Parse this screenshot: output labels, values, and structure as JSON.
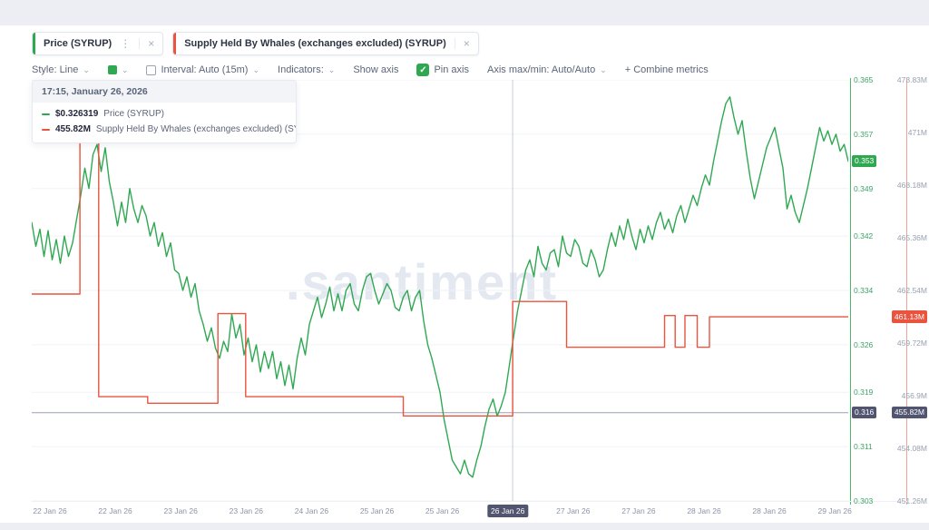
{
  "icons": {
    "kebab": "⋮",
    "close": "×",
    "chevron": "⌄",
    "check": "✓"
  },
  "tabs": [
    {
      "label": "Price (SYRUP)",
      "accent": "#30a852"
    },
    {
      "label": "Supply Held By Whales (exchanges excluded) (SYRUP)",
      "accent": "#e8543e"
    }
  ],
  "toolbar": {
    "style_label": "Style: Line",
    "interval_label": "Interval: Auto (15m)",
    "indicators_label": "Indicators:",
    "show_axis_label": "Show axis",
    "pin_axis_label": "Pin axis",
    "axis_maxmin_label": "Axis max/min: Auto/Auto",
    "combine_metrics_label": "+ Combine metrics"
  },
  "tooltip": {
    "datetime": "17:15, January 26, 2026",
    "rows": [
      {
        "value": "$0.326319",
        "label": "Price (SYRUP)",
        "color": "#30a852"
      },
      {
        "value": "455.82M",
        "label": "Supply Held By Whales (exchanges excluded) (SYRUP)",
        "color": "#e8543e"
      }
    ]
  },
  "watermark": ".santiment",
  "chart_data": {
    "type": "line",
    "title": "Price (SYRUP) vs Supply Held By Whales (exchanges excluded) (SYRUP)",
    "legend_position": "top-left tooltip",
    "grid": true,
    "crosshair": {
      "t": 0.589,
      "price": 0.316,
      "date_label": "26 Jan 26",
      "time_label": "17:15, January 26, 2026"
    },
    "price_axis": {
      "side": "right-inner",
      "color": "#30a852",
      "min": 0.303,
      "max": 0.365,
      "tick_labels": [
        "0.365",
        "0.357",
        "0.349",
        "0.342",
        "0.334",
        "0.326",
        "0.319",
        "0.311",
        "0.303"
      ],
      "tick_values": [
        0.365,
        0.357,
        0.349,
        0.342,
        0.334,
        0.326,
        0.319,
        0.311,
        0.303
      ],
      "current_badge_label": "0.353",
      "current_badge_value": 0.353,
      "crosshair_badge_label": "0.316",
      "crosshair_badge_value": 0.316
    },
    "supply_axis": {
      "side": "right-outer",
      "color": "#e8543e",
      "min": 451.26,
      "max": 473.83,
      "tick_labels": [
        "473.83M",
        "471M",
        "468.18M",
        "465.36M",
        "462.54M",
        "459.72M",
        "456.9M",
        "454.08M",
        "451.26M"
      ],
      "tick_values": [
        473.83,
        471.01,
        468.18,
        465.36,
        462.54,
        459.72,
        456.9,
        454.08,
        451.26
      ],
      "current_badge_label": "461.13M",
      "current_badge_value": 461.13,
      "crosshair_badge_label": "455.82M",
      "crosshair_badge_value": 455.82
    },
    "x_axis": {
      "labels": [
        "22 Jan 26",
        "22 Jan 26",
        "23 Jan 26",
        "23 Jan 26",
        "24 Jan 26",
        "25 Jan 26",
        "25 Jan 26",
        "26 Jan 26",
        "27 Jan 26",
        "27 Jan 26",
        "28 Jan 26",
        "28 Jan 26",
        "29 Jan 26"
      ],
      "highlight_index": 7
    },
    "series": [
      {
        "name": "Price (SYRUP)",
        "color": "#30a852",
        "axis": "price",
        "style": "line",
        "points": [
          [
            0,
            0.344
          ],
          [
            0.005,
            0.3405
          ],
          [
            0.01,
            0.343
          ],
          [
            0.015,
            0.339
          ],
          [
            0.02,
            0.3428
          ],
          [
            0.025,
            0.3385
          ],
          [
            0.03,
            0.3415
          ],
          [
            0.035,
            0.338
          ],
          [
            0.04,
            0.342
          ],
          [
            0.045,
            0.339
          ],
          [
            0.05,
            0.341
          ],
          [
            0.055,
            0.3445
          ],
          [
            0.06,
            0.348
          ],
          [
            0.065,
            0.352
          ],
          [
            0.07,
            0.349
          ],
          [
            0.075,
            0.354
          ],
          [
            0.08,
            0.3555
          ],
          [
            0.085,
            0.3515
          ],
          [
            0.09,
            0.355
          ],
          [
            0.095,
            0.35
          ],
          [
            0.1,
            0.347
          ],
          [
            0.105,
            0.3435
          ],
          [
            0.11,
            0.347
          ],
          [
            0.115,
            0.344
          ],
          [
            0.12,
            0.349
          ],
          [
            0.125,
            0.346
          ],
          [
            0.13,
            0.344
          ],
          [
            0.135,
            0.3465
          ],
          [
            0.14,
            0.345
          ],
          [
            0.145,
            0.342
          ],
          [
            0.15,
            0.344
          ],
          [
            0.155,
            0.3405
          ],
          [
            0.16,
            0.3425
          ],
          [
            0.165,
            0.339
          ],
          [
            0.17,
            0.341
          ],
          [
            0.175,
            0.337
          ],
          [
            0.18,
            0.3365
          ],
          [
            0.185,
            0.334
          ],
          [
            0.19,
            0.336
          ],
          [
            0.195,
            0.333
          ],
          [
            0.2,
            0.335
          ],
          [
            0.205,
            0.331
          ],
          [
            0.21,
            0.329
          ],
          [
            0.215,
            0.3265
          ],
          [
            0.22,
            0.3285
          ],
          [
            0.225,
            0.3255
          ],
          [
            0.23,
            0.324
          ],
          [
            0.235,
            0.3265
          ],
          [
            0.24,
            0.325
          ],
          [
            0.245,
            0.3305
          ],
          [
            0.25,
            0.327
          ],
          [
            0.255,
            0.329
          ],
          [
            0.26,
            0.3245
          ],
          [
            0.265,
            0.327
          ],
          [
            0.27,
            0.3235
          ],
          [
            0.275,
            0.326
          ],
          [
            0.28,
            0.322
          ],
          [
            0.285,
            0.325
          ],
          [
            0.29,
            0.3225
          ],
          [
            0.295,
            0.325
          ],
          [
            0.3,
            0.321
          ],
          [
            0.305,
            0.3235
          ],
          [
            0.31,
            0.32
          ],
          [
            0.315,
            0.323
          ],
          [
            0.32,
            0.3195
          ],
          [
            0.325,
            0.324
          ],
          [
            0.33,
            0.327
          ],
          [
            0.335,
            0.3245
          ],
          [
            0.34,
            0.329
          ],
          [
            0.345,
            0.331
          ],
          [
            0.35,
            0.333
          ],
          [
            0.355,
            0.33
          ],
          [
            0.36,
            0.332
          ],
          [
            0.365,
            0.3345
          ],
          [
            0.37,
            0.331
          ],
          [
            0.375,
            0.3335
          ],
          [
            0.38,
            0.331
          ],
          [
            0.385,
            0.334
          ],
          [
            0.39,
            0.335
          ],
          [
            0.395,
            0.332
          ],
          [
            0.4,
            0.331
          ],
          [
            0.405,
            0.334
          ],
          [
            0.41,
            0.336
          ],
          [
            0.415,
            0.3365
          ],
          [
            0.42,
            0.334
          ],
          [
            0.425,
            0.332
          ],
          [
            0.43,
            0.3335
          ],
          [
            0.435,
            0.335
          ],
          [
            0.44,
            0.334
          ],
          [
            0.445,
            0.3315
          ],
          [
            0.45,
            0.331
          ],
          [
            0.455,
            0.333
          ],
          [
            0.46,
            0.334
          ],
          [
            0.465,
            0.331
          ],
          [
            0.47,
            0.333
          ],
          [
            0.475,
            0.334
          ],
          [
            0.48,
            0.3295
          ],
          [
            0.485,
            0.326
          ],
          [
            0.49,
            0.324
          ],
          [
            0.495,
            0.3215
          ],
          [
            0.5,
            0.319
          ],
          [
            0.505,
            0.315
          ],
          [
            0.51,
            0.312
          ],
          [
            0.515,
            0.309
          ],
          [
            0.52,
            0.308
          ],
          [
            0.525,
            0.307
          ],
          [
            0.53,
            0.309
          ],
          [
            0.535,
            0.307
          ],
          [
            0.54,
            0.3065
          ],
          [
            0.545,
            0.309
          ],
          [
            0.55,
            0.311
          ],
          [
            0.555,
            0.314
          ],
          [
            0.56,
            0.3165
          ],
          [
            0.565,
            0.318
          ],
          [
            0.57,
            0.3155
          ],
          [
            0.575,
            0.317
          ],
          [
            0.58,
            0.319
          ],
          [
            0.585,
            0.323
          ],
          [
            0.589,
            0.3263
          ],
          [
            0.595,
            0.331
          ],
          [
            0.6,
            0.334
          ],
          [
            0.605,
            0.337
          ],
          [
            0.61,
            0.3385
          ],
          [
            0.615,
            0.336
          ],
          [
            0.62,
            0.3405
          ],
          [
            0.625,
            0.338
          ],
          [
            0.63,
            0.337
          ],
          [
            0.635,
            0.3395
          ],
          [
            0.64,
            0.34
          ],
          [
            0.645,
            0.3375
          ],
          [
            0.65,
            0.342
          ],
          [
            0.655,
            0.3395
          ],
          [
            0.66,
            0.339
          ],
          [
            0.665,
            0.3415
          ],
          [
            0.67,
            0.3405
          ],
          [
            0.675,
            0.338
          ],
          [
            0.68,
            0.3375
          ],
          [
            0.685,
            0.34
          ],
          [
            0.69,
            0.3385
          ],
          [
            0.695,
            0.336
          ],
          [
            0.7,
            0.337
          ],
          [
            0.705,
            0.34
          ],
          [
            0.71,
            0.3425
          ],
          [
            0.715,
            0.3405
          ],
          [
            0.72,
            0.3435
          ],
          [
            0.725,
            0.3415
          ],
          [
            0.73,
            0.3445
          ],
          [
            0.735,
            0.342
          ],
          [
            0.74,
            0.34
          ],
          [
            0.745,
            0.343
          ],
          [
            0.75,
            0.341
          ],
          [
            0.755,
            0.3435
          ],
          [
            0.76,
            0.3415
          ],
          [
            0.765,
            0.344
          ],
          [
            0.77,
            0.3455
          ],
          [
            0.775,
            0.343
          ],
          [
            0.78,
            0.3445
          ],
          [
            0.785,
            0.3425
          ],
          [
            0.79,
            0.345
          ],
          [
            0.795,
            0.3465
          ],
          [
            0.8,
            0.344
          ],
          [
            0.805,
            0.346
          ],
          [
            0.81,
            0.348
          ],
          [
            0.815,
            0.3465
          ],
          [
            0.82,
            0.349
          ],
          [
            0.825,
            0.351
          ],
          [
            0.83,
            0.3495
          ],
          [
            0.835,
            0.353
          ],
          [
            0.84,
            0.356
          ],
          [
            0.845,
            0.359
          ],
          [
            0.85,
            0.3615
          ],
          [
            0.855,
            0.3625
          ],
          [
            0.86,
            0.3595
          ],
          [
            0.865,
            0.357
          ],
          [
            0.87,
            0.359
          ],
          [
            0.875,
            0.3545
          ],
          [
            0.88,
            0.3505
          ],
          [
            0.885,
            0.3475
          ],
          [
            0.89,
            0.35
          ],
          [
            0.895,
            0.3525
          ],
          [
            0.9,
            0.355
          ],
          [
            0.905,
            0.3565
          ],
          [
            0.91,
            0.358
          ],
          [
            0.915,
            0.355
          ],
          [
            0.92,
            0.352
          ],
          [
            0.925,
            0.346
          ],
          [
            0.93,
            0.348
          ],
          [
            0.935,
            0.3455
          ],
          [
            0.94,
            0.344
          ],
          [
            0.945,
            0.3465
          ],
          [
            0.95,
            0.349
          ],
          [
            0.955,
            0.352
          ],
          [
            0.96,
            0.355
          ],
          [
            0.965,
            0.358
          ],
          [
            0.97,
            0.356
          ],
          [
            0.975,
            0.3575
          ],
          [
            0.98,
            0.3555
          ],
          [
            0.985,
            0.357
          ],
          [
            0.99,
            0.3545
          ],
          [
            0.995,
            0.3555
          ],
          [
            1,
            0.353
          ]
        ]
      },
      {
        "name": "Supply Held By Whales (exchanges excluded) (SYRUP)",
        "color": "#e8543e",
        "axis": "supply",
        "style": "step",
        "points": [
          [
            0,
            462.35
          ],
          [
            0.059,
            462.35
          ],
          [
            0.059,
            470.5
          ],
          [
            0.082,
            470.5
          ],
          [
            0.082,
            456.85
          ],
          [
            0.142,
            456.85
          ],
          [
            0.142,
            456.5
          ],
          [
            0.228,
            456.5
          ],
          [
            0.228,
            461.3
          ],
          [
            0.262,
            461.3
          ],
          [
            0.262,
            456.85
          ],
          [
            0.455,
            456.85
          ],
          [
            0.455,
            455.82
          ],
          [
            0.589,
            455.82
          ],
          [
            0.589,
            461.95
          ],
          [
            0.655,
            461.95
          ],
          [
            0.655,
            459.5
          ],
          [
            0.775,
            459.5
          ],
          [
            0.775,
            461.2
          ],
          [
            0.788,
            461.2
          ],
          [
            0.788,
            459.5
          ],
          [
            0.8,
            459.5
          ],
          [
            0.8,
            461.2
          ],
          [
            0.815,
            461.2
          ],
          [
            0.815,
            459.5
          ],
          [
            0.83,
            459.5
          ],
          [
            0.83,
            461.13
          ],
          [
            1,
            461.13
          ]
        ]
      }
    ]
  }
}
